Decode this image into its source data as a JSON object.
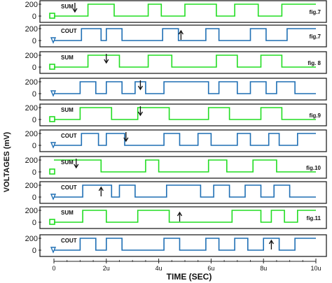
{
  "chart_data": {
    "type": "line",
    "ylabel": "VOLTAGES (mV)",
    "xlabel": "TIME (SEC)",
    "x_ticks": [
      "0",
      "2u",
      "4u",
      "6u",
      "8u",
      "10u"
    ],
    "y_ticks": [
      "200",
      "0"
    ],
    "xlim": [
      0,
      10
    ],
    "ylim": [
      -50,
      250
    ],
    "colors": {
      "SUM": "#22dd22",
      "COUT": "#1f6fb4"
    },
    "panels": [
      {
        "trace": "SUM",
        "label": "SUM",
        "fig": "fig.7",
        "arrow": "down",
        "arrow_x": 0.8,
        "x": [
          0,
          1.3,
          1.3,
          2.3,
          2.3,
          3.6,
          3.6,
          4.1,
          4.1,
          5.0,
          5.0,
          6.2,
          6.2,
          6.9,
          6.9,
          7.8,
          7.8,
          8.7,
          8.7,
          10
        ],
        "y": [
          0,
          0,
          200,
          200,
          0,
          0,
          200,
          200,
          0,
          0,
          200,
          200,
          0,
          0,
          200,
          200,
          0,
          0,
          200,
          200
        ]
      },
      {
        "trace": "COUT",
        "label": "COUT",
        "fig": "fig.7",
        "arrow": "up",
        "arrow_x": 4.85,
        "x": [
          0,
          1.05,
          1.05,
          1.8,
          1.8,
          2.0,
          2.0,
          2.6,
          2.6,
          4.15,
          4.15,
          4.75,
          4.75,
          5.8,
          5.8,
          6.3,
          6.3,
          7.5,
          7.5,
          8.1,
          8.1,
          8.9,
          8.9,
          10
        ],
        "y": [
          0,
          0,
          200,
          200,
          0,
          0,
          200,
          200,
          0,
          0,
          200,
          200,
          0,
          0,
          200,
          200,
          0,
          0,
          200,
          200,
          0,
          0,
          200,
          200
        ]
      },
      {
        "trace": "SUM",
        "label": "SUM",
        "fig": "fig. 8",
        "arrow": "down",
        "arrow_x": 2.0,
        "x": [
          0,
          1.3,
          1.3,
          2.5,
          2.5,
          3.6,
          3.6,
          4.5,
          4.5,
          6.2,
          6.2,
          7.0,
          7.0,
          7.9,
          7.9,
          8.7,
          8.7,
          10
        ],
        "y": [
          0,
          0,
          200,
          200,
          0,
          0,
          200,
          200,
          0,
          0,
          200,
          200,
          0,
          0,
          200,
          200,
          0,
          0
        ]
      },
      {
        "trace": "COUT",
        "label": "",
        "fig": "",
        "arrow": "down",
        "arrow_x": 3.3,
        "x": [
          0,
          1.0,
          1.0,
          1.6,
          1.6,
          2.0,
          2.0,
          2.6,
          2.6,
          3.1,
          3.1,
          3.5,
          3.5,
          4.2,
          4.2,
          5.9,
          5.9,
          6.3,
          6.3,
          7.0,
          7.0,
          7.5,
          7.5,
          8.1,
          8.1,
          8.5,
          8.5,
          9.2,
          9.2,
          10
        ],
        "y": [
          0,
          0,
          200,
          200,
          0,
          0,
          200,
          200,
          0,
          0,
          200,
          200,
          0,
          0,
          200,
          200,
          0,
          0,
          200,
          200,
          0,
          0,
          200,
          200,
          0,
          0,
          200,
          200,
          0,
          0
        ]
      },
      {
        "trace": "SUM",
        "label": "SUM",
        "fig": "fig.9",
        "arrow": "down",
        "arrow_x": 3.3,
        "x": [
          0,
          1.0,
          1.0,
          2.2,
          2.2,
          3.2,
          3.2,
          4.4,
          4.4,
          5.9,
          5.9,
          6.7,
          6.7,
          7.9,
          7.9,
          8.7,
          8.7,
          10
        ],
        "y": [
          0,
          0,
          200,
          200,
          0,
          0,
          200,
          200,
          0,
          0,
          200,
          200,
          0,
          0,
          200,
          200,
          0,
          0
        ]
      },
      {
        "trace": "COUT",
        "label": "COUT",
        "fig": "",
        "arrow": "down",
        "arrow_x": 2.75,
        "x": [
          0,
          1.05,
          1.05,
          1.7,
          1.7,
          2.0,
          2.0,
          2.7,
          2.7,
          4.2,
          4.2,
          4.8,
          4.8,
          5.5,
          5.5,
          6.0,
          6.0,
          7.0,
          7.0,
          7.5,
          7.5,
          8.2,
          8.2,
          8.6,
          8.6,
          9.3,
          9.3,
          10
        ],
        "y": [
          0,
          0,
          200,
          200,
          0,
          0,
          200,
          200,
          0,
          0,
          200,
          200,
          0,
          0,
          200,
          200,
          0,
          0,
          200,
          200,
          0,
          0,
          200,
          200,
          0,
          0,
          200,
          200
        ]
      },
      {
        "trace": "SUM",
        "label": "SUM",
        "fig": "fig.10",
        "arrow": "down",
        "arrow_x": 0.85,
        "x": [
          0,
          1.8,
          1.8,
          3.5,
          3.5,
          4.0,
          4.0,
          5.9,
          5.9,
          6.6,
          6.6,
          7.6,
          7.6,
          8.5,
          8.5,
          10
        ],
        "y": [
          200,
          200,
          0,
          0,
          200,
          200,
          0,
          0,
          200,
          200,
          0,
          0,
          200,
          200,
          0,
          0
        ]
      },
      {
        "trace": "COUT",
        "label": "COUT",
        "fig": "",
        "arrow": "up",
        "arrow_x": 1.8,
        "x": [
          0,
          1.1,
          1.1,
          2.2,
          2.2,
          2.5,
          2.5,
          3.1,
          3.1,
          4.3,
          4.3,
          5.6,
          5.6,
          6.1,
          6.1,
          6.7,
          6.7,
          7.3,
          7.3,
          7.9,
          7.9,
          8.4,
          8.4,
          9.0,
          9.0,
          10
        ],
        "y": [
          0,
          0,
          200,
          200,
          0,
          0,
          200,
          200,
          0,
          0,
          200,
          200,
          0,
          0,
          200,
          200,
          0,
          0,
          200,
          200,
          0,
          0,
          200,
          200,
          0,
          0
        ]
      },
      {
        "trace": "SUM",
        "label": "SUM",
        "fig": "fig.11",
        "arrow": "up",
        "arrow_x": 4.8,
        "x": [
          0,
          1.1,
          1.1,
          2.0,
          2.0,
          3.2,
          3.2,
          4.4,
          4.4,
          6.8,
          6.8,
          7.9,
          7.9,
          8.3,
          8.3,
          8.8,
          8.8,
          9.3,
          9.3,
          10
        ],
        "y": [
          0,
          0,
          200,
          200,
          0,
          0,
          200,
          200,
          0,
          0,
          200,
          200,
          0,
          0,
          200,
          200,
          0,
          0,
          200,
          200
        ]
      },
      {
        "trace": "COUT",
        "label": "COUT",
        "fig": "",
        "arrow": "up",
        "arrow_x": 8.3,
        "x": [
          0,
          1.0,
          1.0,
          1.6,
          1.6,
          2.0,
          2.0,
          2.6,
          2.6,
          4.2,
          4.2,
          4.8,
          4.8,
          5.8,
          5.8,
          6.3,
          6.3,
          6.9,
          6.9,
          7.4,
          7.4,
          8.0,
          8.0,
          8.6,
          8.6,
          9.2,
          9.2,
          10
        ],
        "y": [
          0,
          0,
          200,
          200,
          0,
          0,
          200,
          200,
          0,
          0,
          200,
          200,
          0,
          0,
          200,
          200,
          0,
          0,
          200,
          200,
          0,
          0,
          200,
          200,
          0,
          0,
          200,
          200
        ]
      }
    ]
  }
}
